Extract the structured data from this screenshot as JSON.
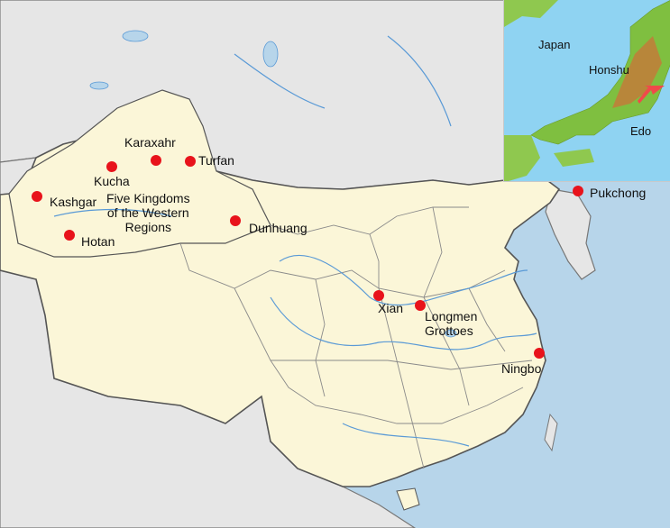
{
  "main_map": {
    "places": [
      {
        "id": "kashgar",
        "label": "Kashgar"
      },
      {
        "id": "kucha",
        "label": "Kucha"
      },
      {
        "id": "karaxahr",
        "label": "Karaxahr"
      },
      {
        "id": "turfan",
        "label": "Turfan"
      },
      {
        "id": "hotan",
        "label": "Hotan"
      },
      {
        "id": "dunhuang",
        "label": "Dunhuang"
      },
      {
        "id": "xian",
        "label": "Xian"
      },
      {
        "id": "longmen",
        "label": "Longmen\nGrottoes"
      },
      {
        "id": "ningbo",
        "label": "Ningbo"
      },
      {
        "id": "pukchong",
        "label": "Pukchong"
      }
    ],
    "region_label": "Five Kingdoms\nof the Western\nRegions"
  },
  "inset": {
    "labels": {
      "japan": "Japan",
      "honshu": "Honshu",
      "edo": "Edo"
    },
    "arrow_color": "#f04a4a"
  },
  "colors": {
    "sea": "#b7d5ea",
    "china": "#fbf6d8",
    "other_land": "#e6e6e6",
    "dot": "#e8131b",
    "river": "#5a9ad6",
    "border": "#6b6b6b"
  }
}
